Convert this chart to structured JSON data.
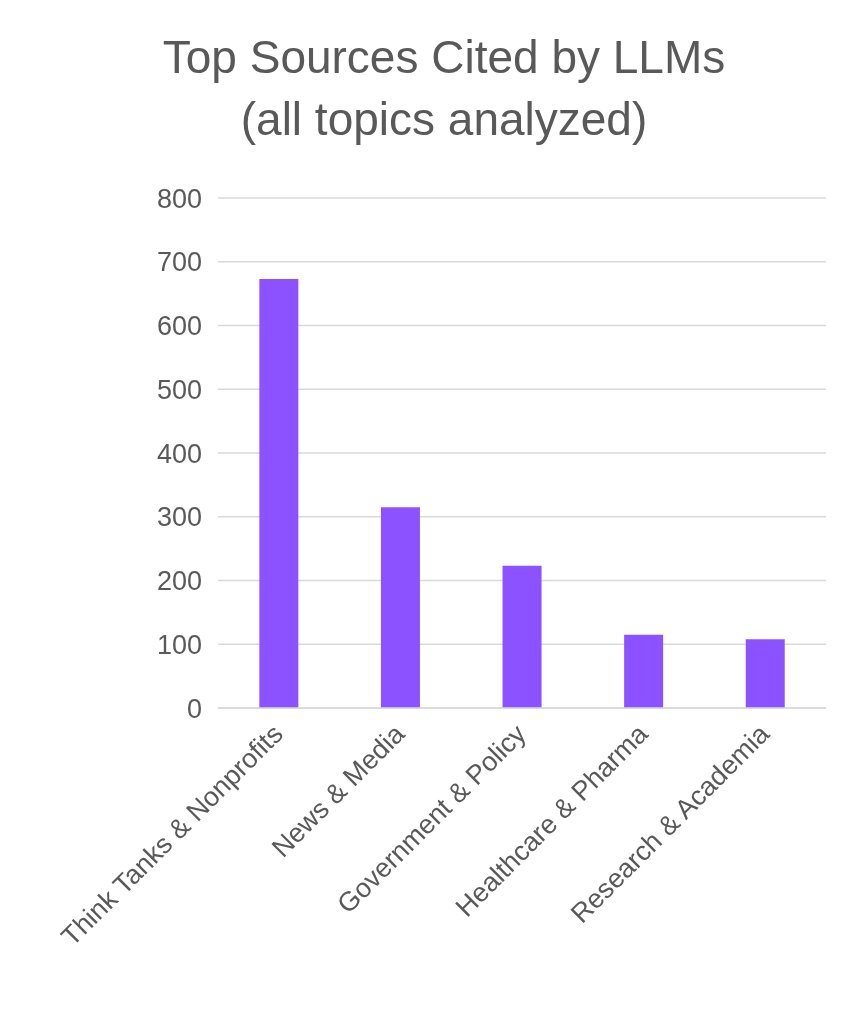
{
  "chart_data": {
    "type": "bar",
    "title": "Top Sources Cited by LLMs",
    "subtitle": "(all topics analyzed)",
    "categories": [
      "Think Tanks & Nonprofits",
      "News & Media",
      "Government & Policy",
      "Healthcare & Pharma",
      "Research & Academia"
    ],
    "values": [
      673,
      315,
      223,
      115,
      108
    ],
    "color": "#8c52ff",
    "ylim": [
      0,
      800
    ],
    "yticks": [
      0,
      100,
      200,
      300,
      400,
      500,
      600,
      700,
      800
    ],
    "grid": "y"
  }
}
